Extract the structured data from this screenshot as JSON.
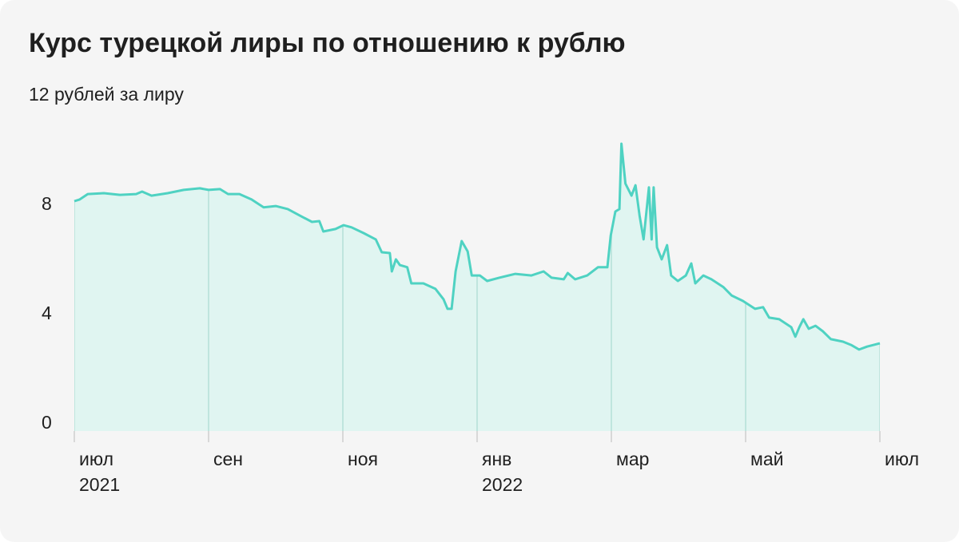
{
  "chart_data": {
    "type": "area",
    "title": "Курс турецкой лиры по отношению к рублю",
    "color": "#4fd2c2",
    "fill": "#e0f5f1",
    "grid": false,
    "xlim": [
      0,
      12
    ],
    "xticks": [
      {
        "value": 0,
        "label": "июл"
      },
      {
        "value": 2,
        "label": "сен"
      },
      {
        "value": 4,
        "label": "ноя"
      },
      {
        "value": 6,
        "label": "янв"
      },
      {
        "value": 8,
        "label": "мар"
      },
      {
        "value": 10,
        "label": "май"
      },
      {
        "value": 12,
        "label": "июл"
      }
    ],
    "year_labels": [
      {
        "value": 0,
        "label": "2021"
      },
      {
        "value": 6,
        "label": "2022"
      }
    ],
    "ylim": [
      0,
      12
    ],
    "yticks": [
      0,
      4,
      8,
      {
        "value": 12,
        "label": "12 рублей за лиру"
      }
    ],
    "x": [
      0,
      0.08,
      0.2,
      0.44,
      0.68,
      0.92,
      1.01,
      1.15,
      1.39,
      1.63,
      1.87,
      2,
      2.17,
      2.29,
      2.46,
      2.64,
      2.82,
      3,
      3.18,
      3.36,
      3.54,
      3.65,
      3.71,
      3.89,
      4.01,
      4.13,
      4.31,
      4.49,
      4.58,
      4.7,
      4.73,
      4.79,
      4.85,
      4.96,
      5.02,
      5.2,
      5.38,
      5.5,
      5.56,
      5.62,
      5.68,
      5.77,
      5.86,
      5.92,
      6.04,
      6.15,
      6.33,
      6.57,
      6.81,
      6.99,
      7.11,
      7.29,
      7.35,
      7.46,
      7.64,
      7.8,
      7.94,
      7.99,
      8.06,
      8.12,
      8.15,
      8.21,
      8.3,
      8.36,
      8.42,
      8.48,
      8.56,
      8.6,
      8.63,
      8.68,
      8.75,
      8.83,
      8.89,
      8.99,
      9.11,
      9.19,
      9.25,
      9.37,
      9.49,
      9.67,
      9.79,
      9.96,
      10.14,
      10.26,
      10.35,
      10.5,
      10.68,
      10.74,
      10.8,
      10.86,
      10.94,
      11.04,
      11.15,
      11.27,
      11.45,
      11.57,
      11.69,
      11.81,
      12
    ],
    "values": [
      8.41,
      8.47,
      8.67,
      8.7,
      8.64,
      8.67,
      8.76,
      8.61,
      8.7,
      8.82,
      8.88,
      8.82,
      8.85,
      8.67,
      8.67,
      8.47,
      8.18,
      8.23,
      8.12,
      7.88,
      7.65,
      7.68,
      7.3,
      7.39,
      7.53,
      7.45,
      7.24,
      7.01,
      6.54,
      6.51,
      5.84,
      6.28,
      6.07,
      5.99,
      5.4,
      5.4,
      5.2,
      4.82,
      4.47,
      4.47,
      5.84,
      6.95,
      6.57,
      5.69,
      5.69,
      5.49,
      5.61,
      5.75,
      5.69,
      5.84,
      5.61,
      5.55,
      5.78,
      5.55,
      5.69,
      5.99,
      5.99,
      7.15,
      8.03,
      8.12,
      10.51,
      9.05,
      8.61,
      8.99,
      7.88,
      7.01,
      8.91,
      7.01,
      8.91,
      6.72,
      6.28,
      6.8,
      5.69,
      5.49,
      5.69,
      6.13,
      5.4,
      5.69,
      5.55,
      5.26,
      4.96,
      4.76,
      4.47,
      4.53,
      4.15,
      4.09,
      3.8,
      3.45,
      3.8,
      4.09,
      3.74,
      3.85,
      3.65,
      3.36,
      3.27,
      3.15,
      2.98,
      3.09,
      3.21
    ]
  }
}
